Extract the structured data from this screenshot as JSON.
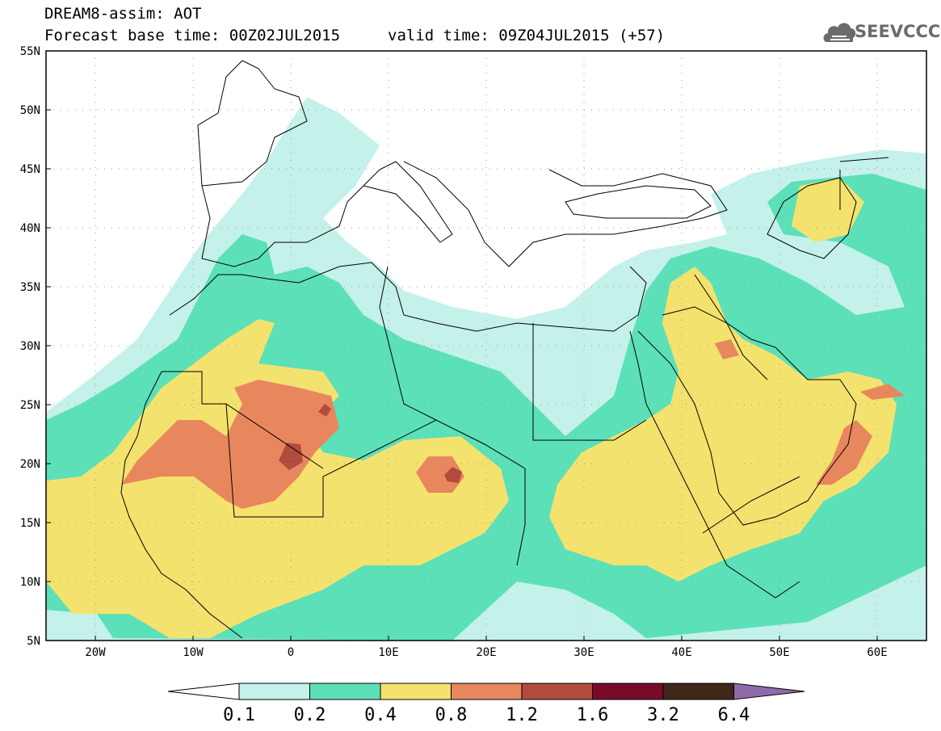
{
  "header": {
    "line1": "DREAM8-assim: AOT",
    "line2": "Forecast base time: 00Z02JUL2015",
    "line3": "valid time: 09Z04JUL2015 (+57)"
  },
  "logo": {
    "text": "SEEVCCC",
    "icon": "cloud-icon"
  },
  "map": {
    "lat_labels": [
      "55N",
      "50N",
      "45N",
      "40N",
      "35N",
      "30N",
      "25N",
      "20N",
      "15N",
      "10N",
      "5N"
    ],
    "lon_labels": [
      "20W",
      "10W",
      "0",
      "10E",
      "20E",
      "30E",
      "40E",
      "50E",
      "60E"
    ],
    "lon_range": [
      -25,
      65
    ],
    "lat_range": [
      5,
      55
    ]
  },
  "colorbar": {
    "labels": [
      "0.1",
      "0.2",
      "0.4",
      "0.8",
      "1.2",
      "1.6",
      "3.2",
      "6.4"
    ],
    "colors": [
      "#ffffff",
      "#c4f1ea",
      "#5ce0b8",
      "#f4e26e",
      "#e8875e",
      "#b24b3e",
      "#7a0a2a",
      "#40281a",
      "#8f6aa8"
    ]
  }
}
